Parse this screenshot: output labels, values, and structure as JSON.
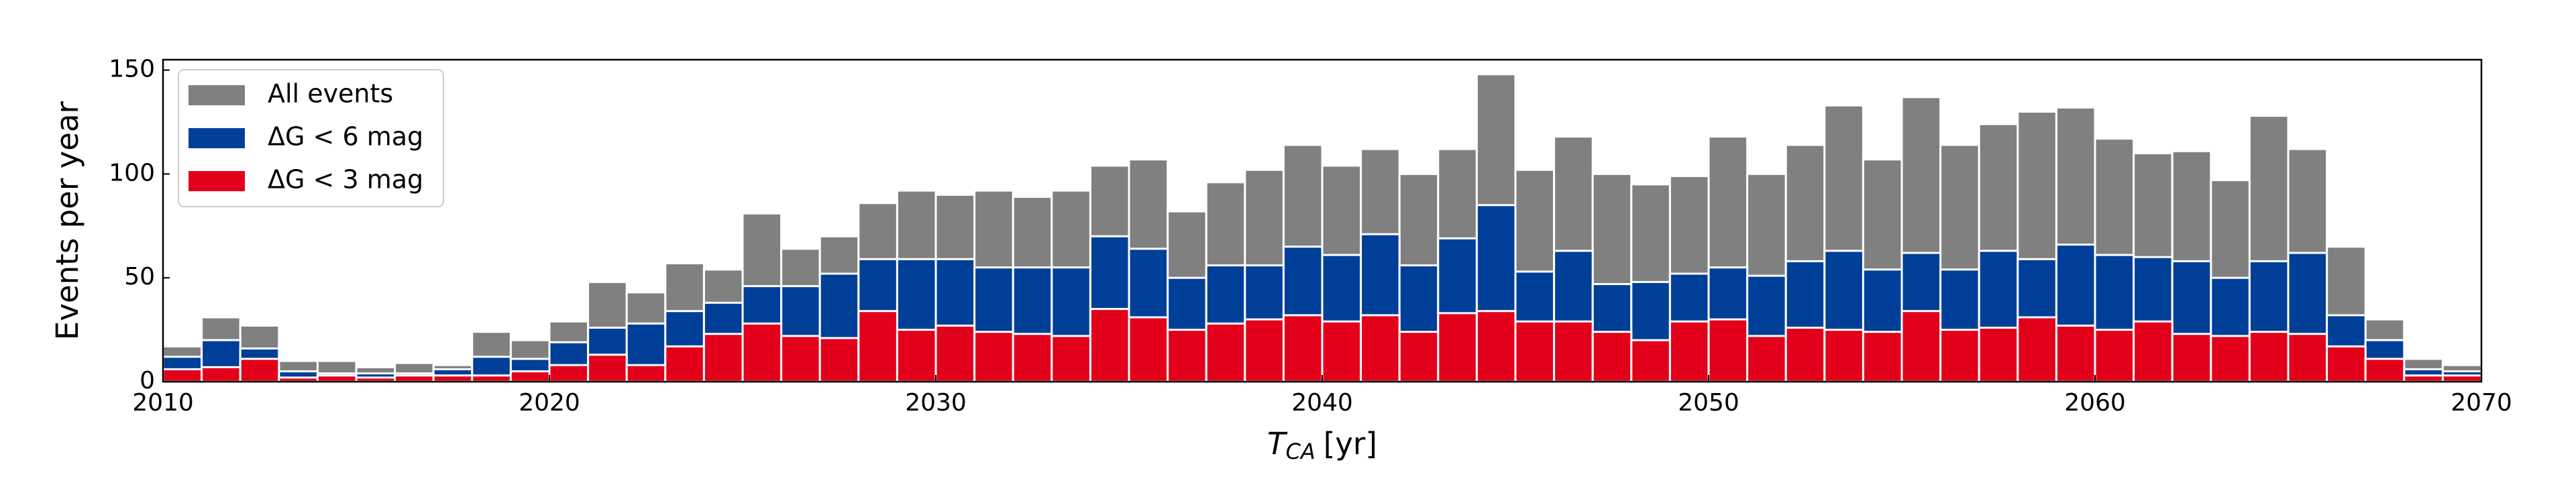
{
  "chart_data": {
    "type": "histogram",
    "bins": [
      2010,
      2011,
      2012,
      2013,
      2014,
      2015,
      2016,
      2017,
      2018,
      2019,
      2020,
      2021,
      2022,
      2023,
      2024,
      2025,
      2026,
      2027,
      2028,
      2029,
      2030,
      2031,
      2032,
      2033,
      2034,
      2035,
      2036,
      2037,
      2038,
      2039,
      2040,
      2041,
      2042,
      2043,
      2044,
      2045,
      2046,
      2047,
      2048,
      2049,
      2050,
      2051,
      2052,
      2053,
      2054,
      2055,
      2056,
      2057,
      2058,
      2059,
      2060,
      2061,
      2062,
      2063,
      2064,
      2065,
      2066,
      2067,
      2068,
      2069,
      2070
    ],
    "series": [
      {
        "name": "All events",
        "color": "#808080",
        "values": [
          17,
          31,
          27,
          10,
          10,
          7,
          9,
          8,
          24,
          20,
          29,
          48,
          43,
          57,
          54,
          81,
          64,
          70,
          86,
          92,
          90,
          92,
          89,
          92,
          104,
          107,
          82,
          96,
          102,
          114,
          104,
          112,
          100,
          112,
          148,
          102,
          118,
          100,
          95,
          99,
          118,
          100,
          114,
          133,
          107,
          137,
          114,
          124,
          130,
          132,
          117,
          110,
          111,
          97,
          128,
          112,
          65,
          30,
          11,
          8
        ]
      },
      {
        "name": "ΔG < 6 mag",
        "color": "#003f98",
        "values": [
          12,
          20,
          16,
          5,
          4,
          4,
          4,
          6,
          12,
          11,
          19,
          26,
          28,
          34,
          38,
          46,
          46,
          52,
          59,
          59,
          59,
          55,
          55,
          55,
          70,
          64,
          50,
          56,
          56,
          65,
          61,
          71,
          56,
          69,
          85,
          53,
          63,
          47,
          48,
          52,
          55,
          51,
          58,
          63,
          54,
          62,
          54,
          63,
          59,
          66,
          61,
          60,
          58,
          50,
          58,
          62,
          32,
          20,
          6,
          5
        ]
      },
      {
        "name": "ΔG < 3 mag",
        "color": "#e2001a",
        "values": [
          6,
          7,
          11,
          2,
          3,
          2,
          3,
          3,
          3,
          5,
          8,
          13,
          8,
          17,
          23,
          28,
          22,
          21,
          34,
          25,
          27,
          24,
          23,
          22,
          35,
          31,
          25,
          28,
          30,
          32,
          29,
          32,
          24,
          33,
          34,
          29,
          29,
          24,
          20,
          29,
          30,
          22,
          26,
          25,
          24,
          34,
          25,
          26,
          31,
          27,
          25,
          29,
          23,
          22,
          24,
          23,
          17,
          11,
          3,
          3
        ]
      }
    ],
    "xlabel": {
      "symbol": "T",
      "subscript": "CA",
      "unit": "[yr]"
    },
    "ylabel": "Events per year",
    "xlim": [
      2010,
      2070
    ],
    "xticks": [
      2010,
      2020,
      2030,
      2040,
      2050,
      2060,
      2070
    ],
    "ylim": [
      0,
      155
    ],
    "yticks": [
      0,
      50,
      100,
      150
    ],
    "legend": "upper left"
  }
}
